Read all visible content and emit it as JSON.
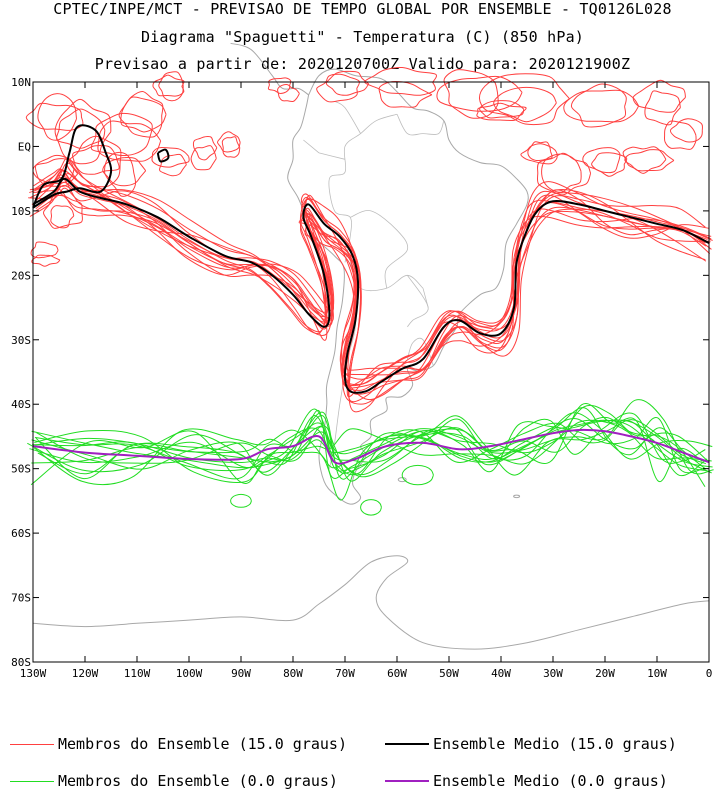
{
  "header": {
    "line1": "CPTEC/INPE/MCT - PREVISAO DE TEMPO GLOBAL POR ENSEMBLE - TQ0126L028",
    "line2": "Diagrama \"Spaguetti\" - Temperatura (C) (850 hPa)",
    "line3": "Previsao a partir de: 2020120700Z  Valido para: 2020121900Z"
  },
  "map": {
    "lon_labels": [
      "130W",
      "120W",
      "110W",
      "100W",
      "90W",
      "80W",
      "70W",
      "60W",
      "50W",
      "40W",
      "30W",
      "20W",
      "10W",
      "0"
    ],
    "lon_values": [
      -130,
      -120,
      -110,
      -100,
      -90,
      -80,
      -70,
      -60,
      -50,
      -40,
      -30,
      -20,
      -10,
      0
    ],
    "lat_labels": [
      "10N",
      "EQ",
      "10S",
      "20S",
      "30S",
      "40S",
      "50S",
      "60S",
      "70S",
      "80S"
    ],
    "lat_values": [
      10,
      0,
      -10,
      -20,
      -30,
      -40,
      -50,
      -60,
      -70,
      -80
    ],
    "lon_range": [
      -130,
      0
    ],
    "lat_range": [
      -80,
      10
    ]
  },
  "colors": {
    "member15": "#ff4040",
    "mean15": "#000000",
    "member0": "#22dd22",
    "mean0": "#a020c0",
    "coast": "#a8a8a8"
  },
  "legend": {
    "members15": "Membros do Ensemble (15.0 graus)",
    "mean15": "Ensemble Medio (15.0 graus)",
    "members0": "Membros do Ensemble (0.0 graus)",
    "mean0": "Ensemble Medio (0.0 graus)"
  }
}
